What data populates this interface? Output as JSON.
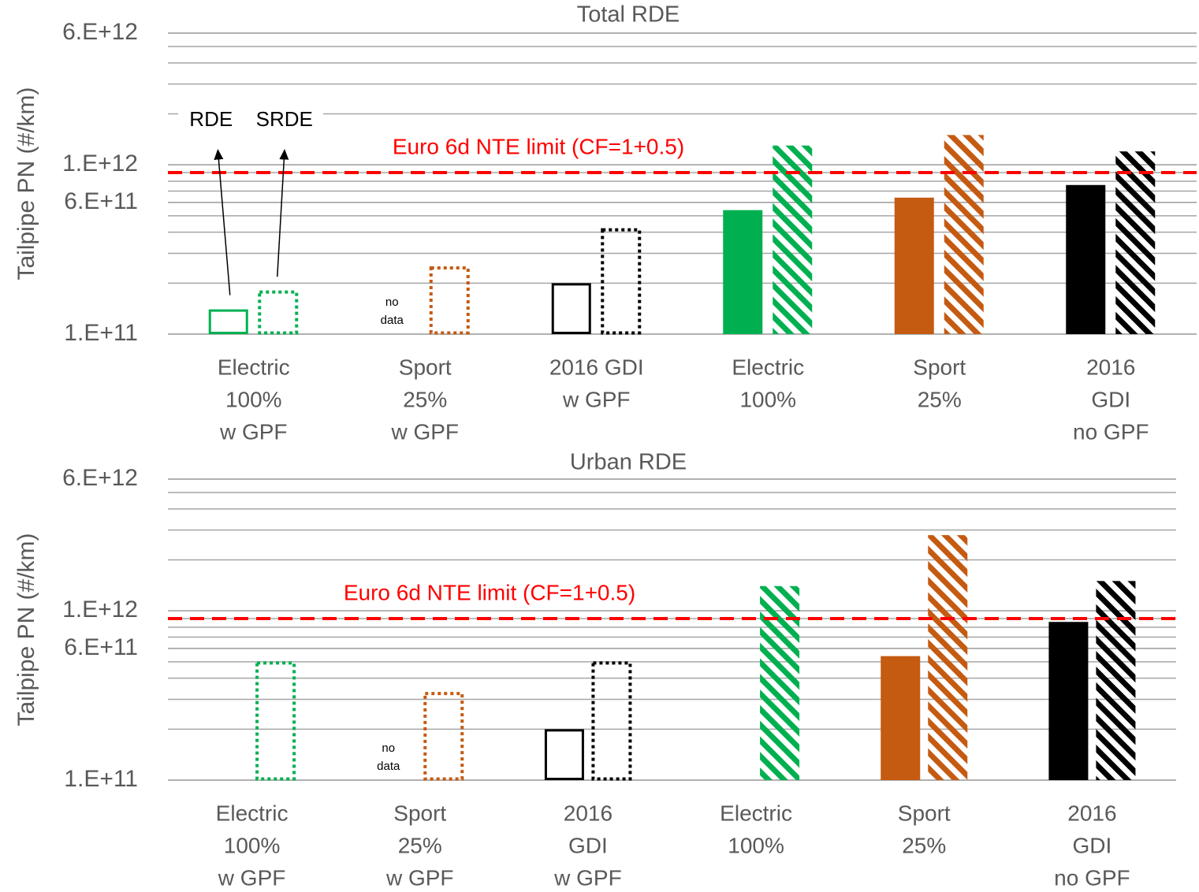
{
  "chart_data": [
    {
      "type": "bar",
      "title": "Total RDE",
      "ylabel": "Tailpipe PN (#/km)",
      "categories": [
        [
          "Electric",
          "100%",
          "w GPF"
        ],
        [
          "Sport",
          "25%",
          "w GPF"
        ],
        [
          "2016 GDI",
          "w GPF"
        ],
        [
          "Electric",
          "100%"
        ],
        [
          "Sport",
          "25%"
        ],
        [
          "2016",
          "GDI",
          "no GPF"
        ]
      ],
      "series": [
        {
          "name": "RDE",
          "values": [
            140000000000.0,
            null,
            200000000000.0,
            540000000000.0,
            640000000000.0,
            760000000000.0
          ]
        },
        {
          "name": "SRDE",
          "values": [
            180000000000.0,
            250000000000.0,
            420000000000.0,
            1300000000000.0,
            1500000000000.0,
            1200000000000.0
          ]
        }
      ],
      "group_colors": [
        "#00b050",
        "#c55a11",
        "#000000",
        "#00b050",
        "#c55a11",
        "#000000"
      ],
      "group_styles": [
        "outline",
        "outline",
        "outline",
        "filled",
        "filled",
        "filled"
      ],
      "ylim": [
        100000000000.0,
        6000000000000.0
      ],
      "log_scale": true,
      "grid": true,
      "minor_grid": true,
      "yticks": [
        {
          "value": 100000000000.0,
          "label": "1.E+11"
        },
        {
          "value": 600000000000.0,
          "label": "6.E+11"
        },
        {
          "value": 1000000000000.0,
          "label": "1.E+12"
        },
        {
          "value": 6000000000000.0,
          "label": "6.E+12"
        }
      ],
      "limit": {
        "value": 900000000000.0,
        "label": "Euro 6d NTE limit (CF=1+0.5)",
        "color": "#ff0000"
      },
      "legend": "arrows",
      "annotations": [
        {
          "text": [
            "no",
            "data"
          ],
          "series": "RDE",
          "category": 1
        }
      ]
    },
    {
      "type": "bar",
      "title": "Urban RDE",
      "ylabel": "Tailpipe PN (#/km)",
      "categories": [
        [
          "Electric",
          "100%",
          "w GPF"
        ],
        [
          "Sport",
          "25%",
          "w GPF"
        ],
        [
          "2016",
          "GDI",
          "w GPF"
        ],
        [
          "Electric",
          "100%"
        ],
        [
          "Sport",
          "25%"
        ],
        [
          "2016",
          "GDI",
          "no GPF"
        ]
      ],
      "series": [
        {
          "name": "RDE",
          "values": [
            null,
            null,
            200000000000.0,
            null,
            540000000000.0,
            860000000000.0
          ]
        },
        {
          "name": "SRDE",
          "values": [
            500000000000.0,
            330000000000.0,
            500000000000.0,
            1400000000000.0,
            2800000000000.0,
            1500000000000.0
          ]
        }
      ],
      "group_colors": [
        "#00b050",
        "#c55a11",
        "#000000",
        "#00b050",
        "#c55a11",
        "#000000"
      ],
      "group_styles": [
        "outline",
        "outline",
        "outline",
        "filled",
        "filled",
        "filled"
      ],
      "ylim": [
        100000000000.0,
        6000000000000.0
      ],
      "log_scale": true,
      "grid": true,
      "minor_grid": true,
      "yticks": [
        {
          "value": 100000000000.0,
          "label": "1.E+11"
        },
        {
          "value": 600000000000.0,
          "label": "6.E+11"
        },
        {
          "value": 1000000000000.0,
          "label": "1.E+12"
        },
        {
          "value": 6000000000000.0,
          "label": "6.E+12"
        }
      ],
      "limit": {
        "value": 900000000000.0,
        "label": "Euro 6d NTE limit (CF=1+0.5)",
        "color": "#ff0000"
      },
      "annotations": [
        {
          "text": [
            "no",
            "data"
          ],
          "series": "RDE",
          "category": 1
        }
      ]
    }
  ]
}
